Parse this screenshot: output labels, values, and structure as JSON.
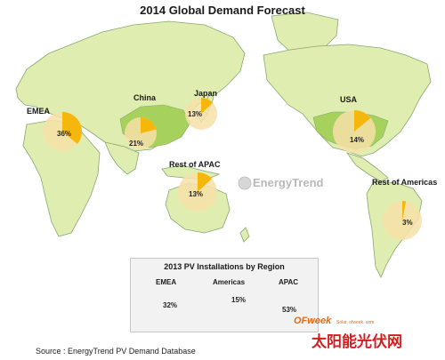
{
  "chart_data": [
    {
      "type": "pie",
      "title": "2014 Global Demand Forecast",
      "slices": [
        {
          "label": "EMEA",
          "value": 36
        },
        {
          "label": "China",
          "value": 21
        },
        {
          "label": "Japan",
          "value": 13
        },
        {
          "label": "USA",
          "value": 14
        },
        {
          "label": "Rest of APAC",
          "value": 13
        },
        {
          "label": "Rest of Americas",
          "value": 3
        }
      ]
    },
    {
      "type": "pie",
      "title": "2013 PV Installations by Region",
      "slices": [
        {
          "label": "EMEA",
          "value": 32
        },
        {
          "label": "Americas",
          "value": 15
        },
        {
          "label": "APAC",
          "value": 53
        }
      ]
    }
  ],
  "labels": {
    "emea": "EMEA",
    "china": "China",
    "japan": "Japan",
    "usa": "USA",
    "rest_apac": "Rest of APAC",
    "rest_americas": "Rest of Americas",
    "americas": "Americas",
    "apac": "APAC"
  },
  "percent_labels": {
    "emea": "36%",
    "china": "21%",
    "japan": "13%",
    "usa": "14%",
    "rest_apac": "13%",
    "rest_americas": "3%",
    "inset_emea": "32%",
    "inset_americas": "15%",
    "inset_apac": "53%"
  },
  "source": "Source : EnergyTrend PV Demand Database",
  "logo_text": "EnergyTrend",
  "watermark": {
    "brand": "OFweek",
    "site": "Solar. ofweek. com",
    "chinese": "太阳能光伏网"
  },
  "colors": {
    "land": "#dfeeb0",
    "land_highlight": "#a6d15c",
    "pie_bg": "#f7e0a8",
    "pie_fill": "#f6b70d",
    "coast": "#86a870"
  }
}
